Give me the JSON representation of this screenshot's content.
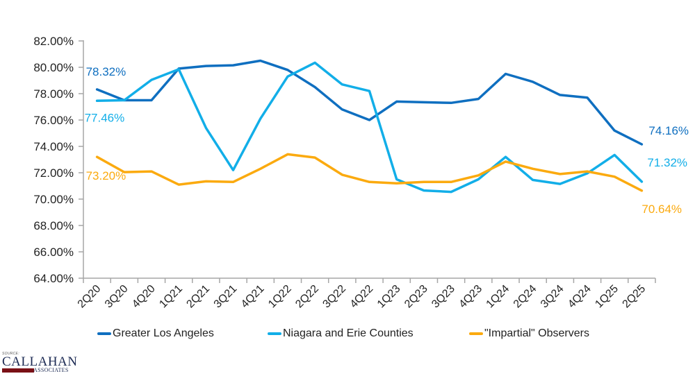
{
  "chart_data": {
    "type": "line",
    "title": "",
    "xlabel": "",
    "ylabel": "",
    "ylim": [
      64,
      82
    ],
    "ytick_step": 2,
    "ytick_format": "percent_2dp",
    "yticks": [
      "64.00%",
      "66.00%",
      "68.00%",
      "70.00%",
      "72.00%",
      "74.00%",
      "76.00%",
      "78.00%",
      "80.00%",
      "82.00%"
    ],
    "grid": false,
    "legend_position": "bottom",
    "categories": [
      "2Q20",
      "3Q20",
      "4Q20",
      "1Q21",
      "2Q21",
      "3Q21",
      "4Q21",
      "1Q22",
      "2Q22",
      "3Q22",
      "4Q22",
      "1Q23",
      "2Q23",
      "3Q23",
      "4Q23",
      "1Q24",
      "2Q24",
      "3Q24",
      "4Q24",
      "1Q25",
      "2Q25"
    ],
    "series": [
      {
        "name": "Greater Los Angeles",
        "color": "#0f6fc0",
        "values": [
          78.32,
          77.5,
          77.5,
          79.9,
          80.1,
          80.15,
          80.5,
          79.8,
          78.5,
          76.8,
          76.0,
          77.4,
          77.35,
          77.3,
          77.6,
          79.5,
          78.9,
          77.9,
          77.7,
          75.2,
          74.16
        ],
        "start_label": "78.32%",
        "end_label": "74.16%"
      },
      {
        "name": "Niagara and Erie Counties",
        "color": "#12aee8",
        "values": [
          77.46,
          77.5,
          79.05,
          79.85,
          75.4,
          72.2,
          76.1,
          79.3,
          80.35,
          78.7,
          78.2,
          71.5,
          70.65,
          70.55,
          71.5,
          73.2,
          71.45,
          71.15,
          71.95,
          73.35,
          71.32
        ],
        "start_label": "77.46%",
        "end_label": "71.32%"
      },
      {
        "name": "\"Impartial\" Observers",
        "color": "#fbaa0f",
        "values": [
          73.2,
          72.05,
          72.1,
          71.1,
          71.35,
          71.3,
          72.3,
          73.4,
          73.15,
          71.85,
          71.3,
          71.2,
          71.3,
          71.3,
          71.8,
          72.85,
          72.3,
          71.9,
          72.1,
          71.7,
          70.64
        ],
        "start_label": "73.20%",
        "end_label": "70.64%"
      }
    ]
  },
  "source": {
    "label": "SOURCE:",
    "name": "CALLAHAN",
    "subname": "ASSOCIATES"
  }
}
